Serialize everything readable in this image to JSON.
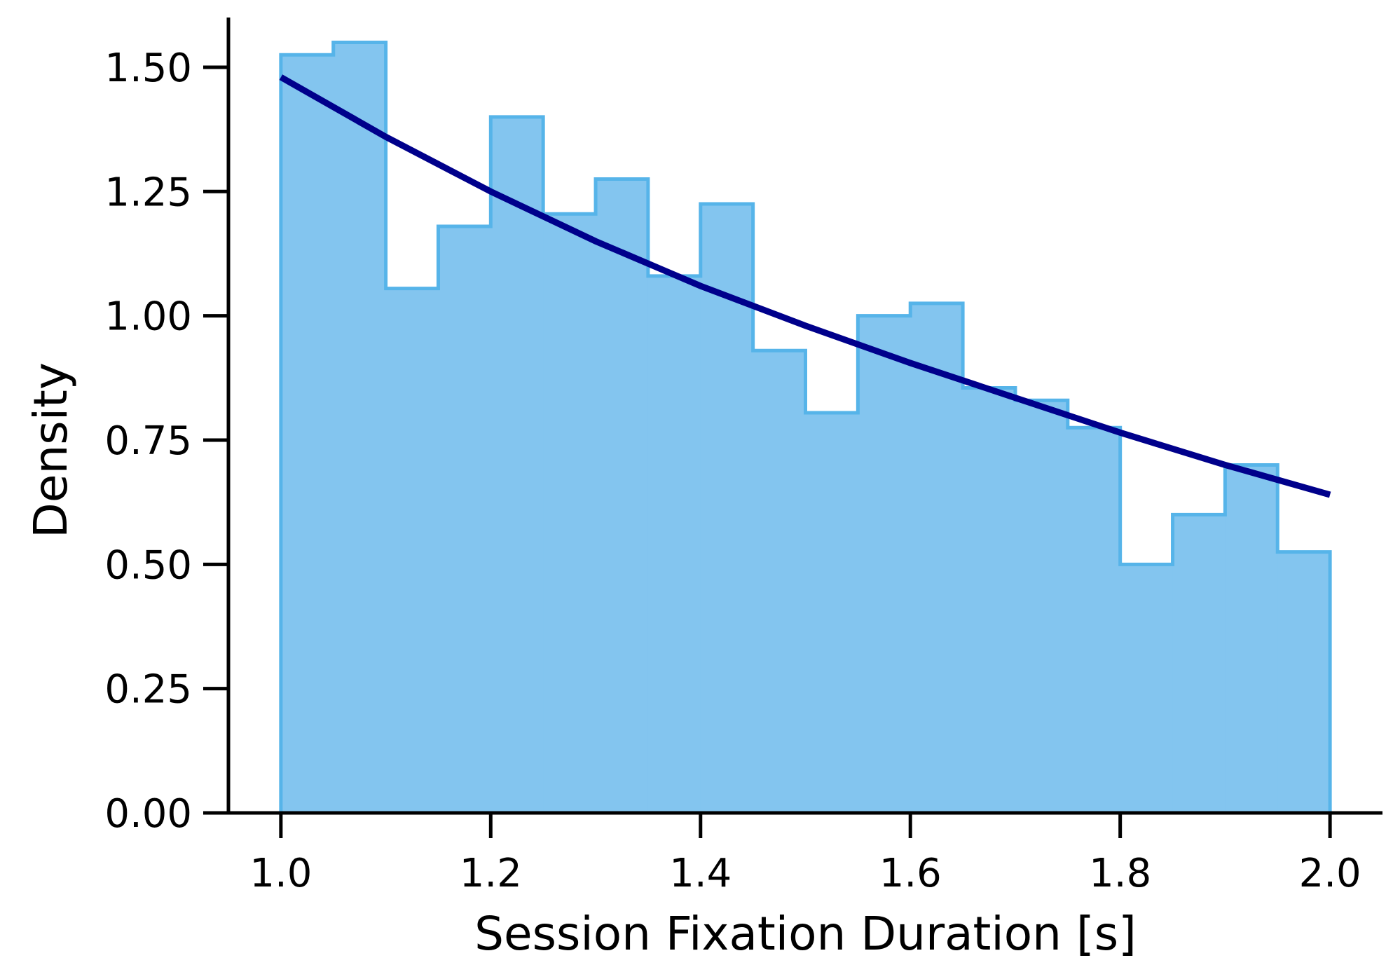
{
  "chart_data": {
    "type": "histogram",
    "xlabel": "Session Fixation Duration [s]",
    "ylabel": "Density",
    "xlim": [
      0.95,
      2.05
    ],
    "ylim": [
      0,
      1.6
    ],
    "xticks": [
      1.0,
      1.2,
      1.4,
      1.6,
      1.8,
      2.0
    ],
    "xtick_labels": [
      "1.0",
      "1.2",
      "1.4",
      "1.6",
      "1.8",
      "2.0"
    ],
    "yticks": [
      0.0,
      0.25,
      0.5,
      0.75,
      1.0,
      1.25,
      1.5
    ],
    "ytick_labels": [
      "0.00",
      "0.25",
      "0.50",
      "0.75",
      "1.00",
      "1.25",
      "1.50"
    ],
    "bin_edges": [
      1.0,
      1.05,
      1.1,
      1.15,
      1.2,
      1.25,
      1.3,
      1.35,
      1.4,
      1.45,
      1.5,
      1.55,
      1.6,
      1.65,
      1.7,
      1.75,
      1.8,
      1.85,
      1.9,
      1.95,
      2.0
    ],
    "densities": [
      1.525,
      1.55,
      1.055,
      1.18,
      1.4,
      1.205,
      1.275,
      1.08,
      1.225,
      0.93,
      0.805,
      1.0,
      1.025,
      0.855,
      0.83,
      0.775,
      0.5,
      0.6,
      0.7,
      0.525
    ],
    "fit_curve": {
      "x": [
        1.0,
        1.1,
        1.2,
        1.3,
        1.4,
        1.5,
        1.6,
        1.7,
        1.8,
        1.9,
        2.0
      ],
      "y": [
        1.48,
        1.36,
        1.25,
        1.15,
        1.06,
        0.98,
        0.905,
        0.835,
        0.765,
        0.7,
        0.64
      ]
    },
    "grid": false,
    "colors": {
      "bar_fill": "#83c5ef",
      "bar_edge": "#56b4e9",
      "curve": "#00008b",
      "axis": "#000000"
    }
  }
}
